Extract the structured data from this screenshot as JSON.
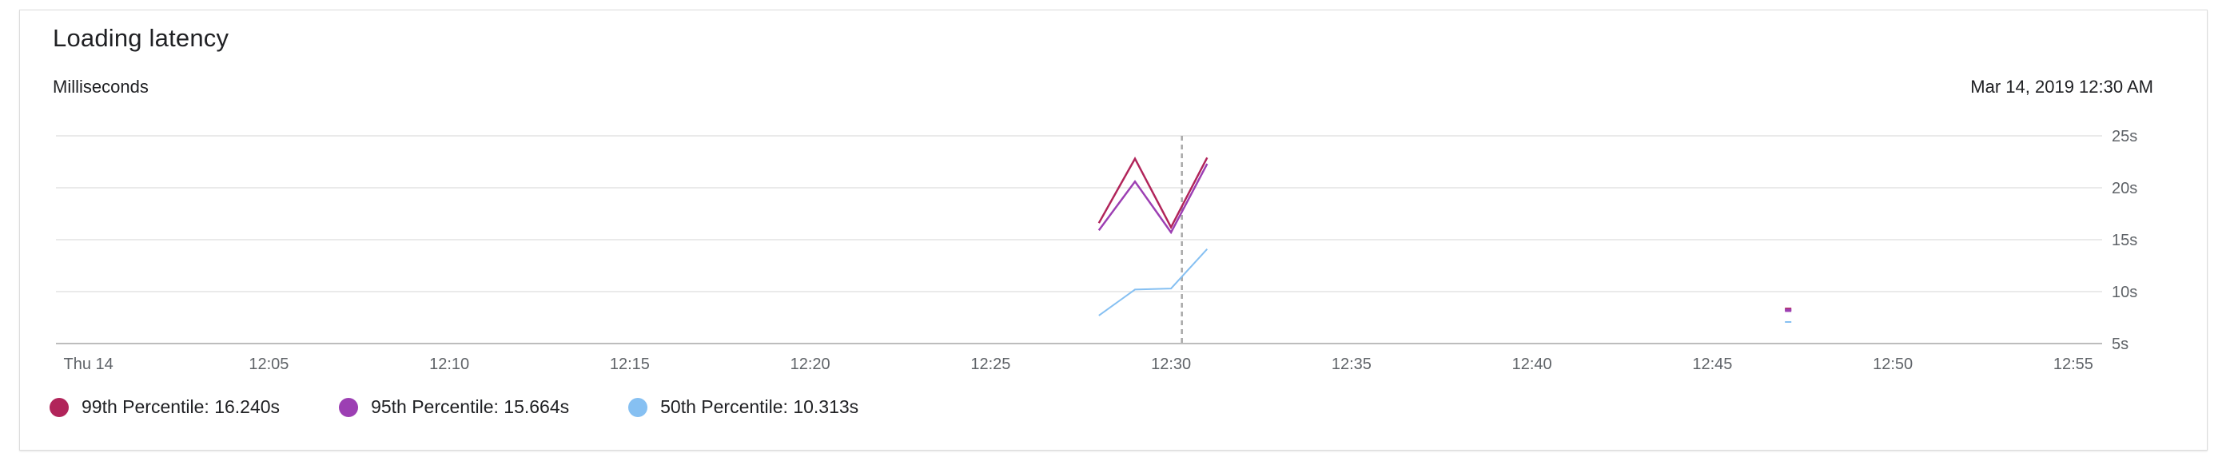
{
  "card": {
    "title": "Loading latency",
    "units": "Milliseconds",
    "timestamp": "Mar 14, 2019 12:30 AM"
  },
  "legend": [
    {
      "text": "99th Percentile: 16.240s",
      "color": "#b1245a"
    },
    {
      "text": "95th Percentile: 15.664s",
      "color": "#9c3fb3"
    },
    {
      "text": "50th Percentile: 10.313s",
      "color": "#86c0f2"
    }
  ],
  "chart_data": {
    "type": "line",
    "x_ticks": [
      "Thu 14",
      "12:05",
      "12:10",
      "12:15",
      "12:20",
      "12:25",
      "12:30",
      "12:35",
      "12:40",
      "12:45",
      "12:50",
      "12:55"
    ],
    "x_range_minutes": [
      -0.9,
      55.8
    ],
    "y_ticks": [
      "5s",
      "10s",
      "15s",
      "20s",
      "25s"
    ],
    "ylim": [
      5,
      25
    ],
    "grid": true,
    "hover_marker_minute": 30.3,
    "series": [
      {
        "name": "99th Percentile",
        "color": "#b1245a",
        "points": [
          [
            28.0,
            16.6
          ],
          [
            29.0,
            22.8
          ],
          [
            30.0,
            16.2
          ],
          [
            31.0,
            22.9
          ]
        ],
        "isolated_points": [
          [
            47.1,
            8.3
          ]
        ]
      },
      {
        "name": "95th Percentile",
        "color": "#9c3fb3",
        "points": [
          [
            28.0,
            15.9
          ],
          [
            29.0,
            20.6
          ],
          [
            30.0,
            15.7
          ],
          [
            31.0,
            22.3
          ]
        ],
        "isolated_points": [
          [
            47.1,
            8.2
          ]
        ]
      },
      {
        "name": "50th Percentile",
        "color": "#86c0f2",
        "points": [
          [
            28.0,
            7.7
          ],
          [
            29.0,
            10.2
          ],
          [
            30.0,
            10.3
          ],
          [
            31.0,
            14.1
          ]
        ],
        "isolated_points": [
          [
            47.1,
            7.0
          ]
        ]
      }
    ]
  }
}
